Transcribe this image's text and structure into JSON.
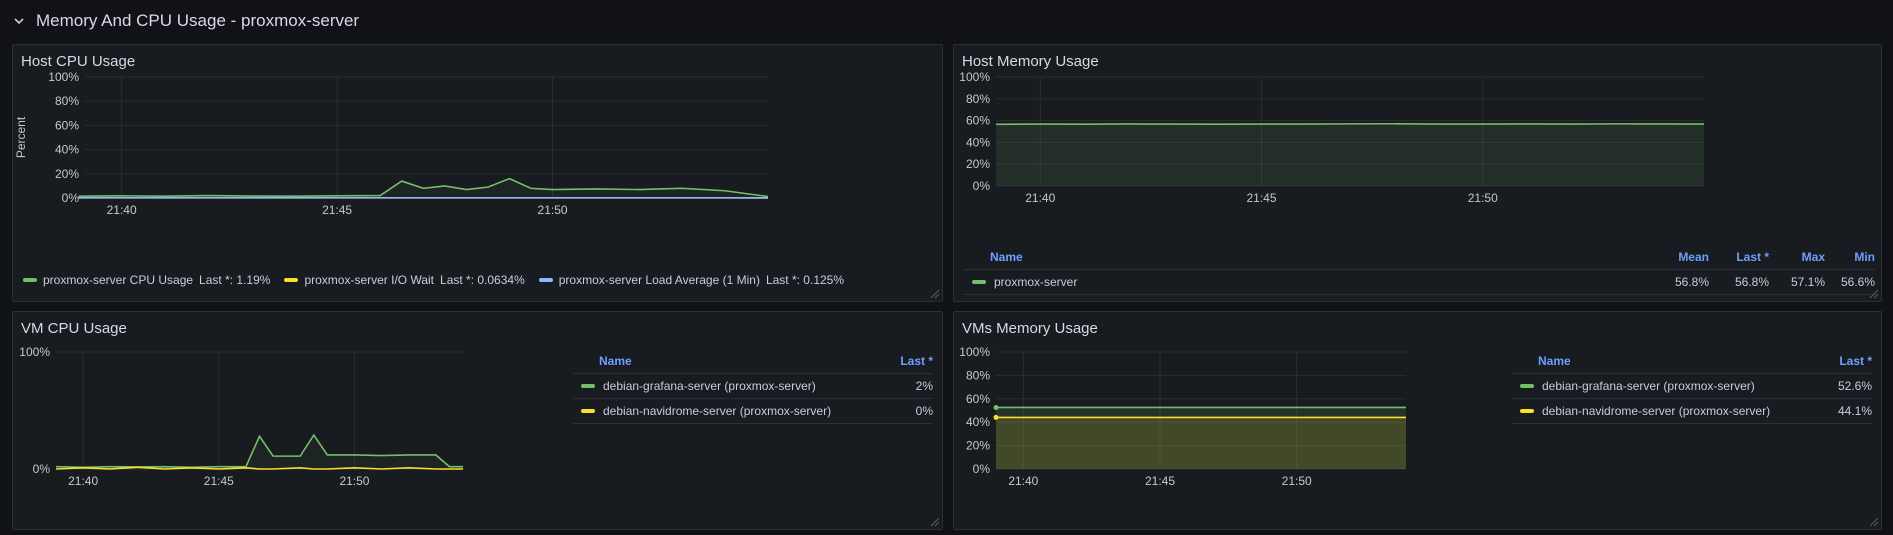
{
  "row": {
    "title": "Memory And CPU Usage - proxmox-server",
    "icon": "chevron-down-icon"
  },
  "colors": {
    "green": "#73bf69",
    "yellow": "#fade2a",
    "blue": "#8ab8ff",
    "accent": "#6e9fff"
  },
  "x_ticks": [
    "21:40",
    "21:45",
    "21:50"
  ],
  "panels": {
    "host_cpu": {
      "title": "Host CPU Usage",
      "ylabel": "Percent",
      "y_ticks": [
        "100%",
        "80%",
        "60%",
        "40%",
        "20%",
        "0%"
      ],
      "legend": [
        {
          "name": "proxmox-server CPU Usage",
          "stat": "Last *: 1.19%",
          "color": "#73bf69"
        },
        {
          "name": "proxmox-server I/O Wait",
          "stat": "Last *: 0.0634%",
          "color": "#fade2a"
        },
        {
          "name": "proxmox-server Load Average (1 Min)",
          "stat": "Last *: 0.125%",
          "color": "#8ab8ff"
        }
      ]
    },
    "host_mem": {
      "title": "Host Memory Usage",
      "y_ticks": [
        "100%",
        "80%",
        "60%",
        "40%",
        "20%",
        "0%"
      ],
      "table": {
        "headers": [
          "Name",
          "Mean",
          "Last *",
          "Max",
          "Min"
        ],
        "rows": [
          {
            "name": "proxmox-server",
            "color": "#73bf69",
            "values": [
              "56.8%",
              "56.8%",
              "57.1%",
              "56.6%"
            ]
          }
        ]
      }
    },
    "vm_cpu": {
      "title": "VM CPU Usage",
      "y_ticks": [
        "100%",
        "0%"
      ],
      "table": {
        "headers": [
          "Name",
          "Last *"
        ],
        "rows": [
          {
            "name": "debian-grafana-server (proxmox-server)",
            "color": "#73bf69",
            "value": "2%"
          },
          {
            "name": "debian-navidrome-server (proxmox-server)",
            "color": "#fade2a",
            "value": "0%"
          }
        ]
      }
    },
    "vm_mem": {
      "title": "VMs Memory Usage",
      "y_ticks": [
        "100%",
        "80%",
        "60%",
        "40%",
        "20%",
        "0%"
      ],
      "table": {
        "headers": [
          "Name",
          "Last *"
        ],
        "rows": [
          {
            "name": "debian-grafana-server (proxmox-server)",
            "color": "#73bf69",
            "value": "52.6%"
          },
          {
            "name": "debian-navidrome-server (proxmox-server)",
            "color": "#fade2a",
            "value": "44.1%"
          }
        ]
      }
    }
  },
  "chart_data": [
    {
      "type": "line",
      "title": "Host CPU Usage",
      "xlabel": "",
      "ylabel": "Percent",
      "ylim": [
        0,
        100
      ],
      "x": [
        "21:39",
        "21:40",
        "21:41",
        "21:42",
        "21:43",
        "21:44",
        "21:45",
        "21:46",
        "21:46:30",
        "21:47",
        "21:47:30",
        "21:48",
        "21:48:30",
        "21:49",
        "21:49:30",
        "21:50",
        "21:51",
        "21:52",
        "21:53",
        "21:54",
        "21:55"
      ],
      "series": [
        {
          "name": "proxmox-server CPU Usage",
          "values": [
            1.5,
            1.8,
            1.5,
            2,
            1.6,
            1.5,
            1.8,
            2,
            14,
            8,
            10,
            7,
            9,
            16,
            8,
            7,
            7.5,
            7,
            8,
            6,
            1.2
          ]
        },
        {
          "name": "proxmox-server I/O Wait",
          "values": [
            0.1,
            0.1,
            0.1,
            0.1,
            0.1,
            0.1,
            0.1,
            0.1,
            0.1,
            0.1,
            0.1,
            0.1,
            0.1,
            0.1,
            0.1,
            0.1,
            0.1,
            0.1,
            0.1,
            0.1,
            0.06
          ]
        },
        {
          "name": "proxmox-server Load Average (1 Min)",
          "values": [
            0.2,
            0.2,
            0.2,
            0.2,
            0.2,
            0.2,
            0.2,
            0.2,
            0.2,
            0.2,
            0.2,
            0.2,
            0.2,
            0.2,
            0.2,
            0.2,
            0.2,
            0.2,
            0.2,
            0.2,
            0.13
          ]
        }
      ]
    },
    {
      "type": "area",
      "title": "Host Memory Usage",
      "ylim": [
        0,
        100
      ],
      "x": [
        "21:39",
        "21:40",
        "21:41",
        "21:42",
        "21:43",
        "21:44",
        "21:45",
        "21:46",
        "21:47",
        "21:48",
        "21:49",
        "21:50",
        "21:51",
        "21:52",
        "21:53",
        "21:54",
        "21:55"
      ],
      "series": [
        {
          "name": "proxmox-server",
          "values": [
            56.6,
            56.8,
            56.7,
            56.9,
            56.8,
            56.7,
            56.8,
            56.8,
            57.0,
            57.1,
            56.8,
            56.8,
            56.9,
            56.8,
            57.0,
            56.9,
            56.8
          ]
        }
      ]
    },
    {
      "type": "line",
      "title": "VM CPU Usage",
      "ylim": [
        0,
        100
      ],
      "x": [
        "21:39",
        "21:40",
        "21:41",
        "21:42",
        "21:43",
        "21:44",
        "21:45",
        "21:45:30",
        "21:46",
        "21:46:30",
        "21:47",
        "21:48",
        "21:48:30",
        "21:49",
        "21:50",
        "21:51",
        "21:52",
        "21:53",
        "21:53:30",
        "21:54"
      ],
      "series": [
        {
          "name": "debian-grafana-server (proxmox-server)",
          "values": [
            2,
            1.5,
            2,
            1.8,
            2,
            1.5,
            2,
            2,
            2,
            28,
            11,
            11,
            29,
            12,
            12,
            11.5,
            12,
            12,
            2,
            2
          ]
        },
        {
          "name": "debian-navidrome-server (proxmox-server)",
          "values": [
            0,
            1,
            0,
            1.5,
            0,
            1,
            0,
            0.5,
            1,
            0,
            0,
            1,
            0,
            0,
            1,
            0,
            1,
            0,
            0,
            0
          ]
        }
      ]
    },
    {
      "type": "area",
      "title": "VMs Memory Usage",
      "ylim": [
        0,
        100
      ],
      "x": [
        "21:39",
        "21:54"
      ],
      "series": [
        {
          "name": "debian-grafana-server (proxmox-server)",
          "values": [
            52.6,
            52.6
          ]
        },
        {
          "name": "debian-navidrome-server (proxmox-server)",
          "values": [
            44.1,
            44.1
          ]
        }
      ]
    }
  ]
}
